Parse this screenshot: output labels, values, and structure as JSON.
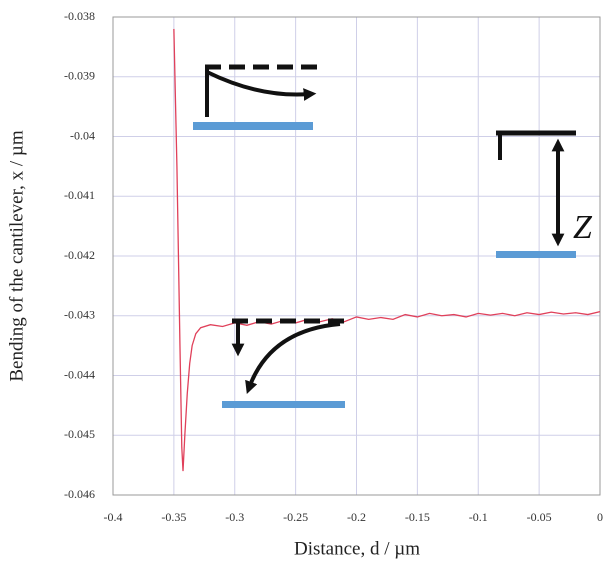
{
  "chart_data": {
    "type": "line",
    "x_label": "Distance, d / µm",
    "y_label": "Bending of the cantilever, x / µm",
    "annotation": "Z",
    "color": "#e0405a",
    "grid": true,
    "xlim": [
      -0.4,
      0
    ],
    "ylim": [
      -0.046,
      -0.038
    ],
    "xticks": [
      -0.4,
      -0.35,
      -0.3,
      -0.25,
      -0.2,
      -0.15,
      -0.1,
      -0.05,
      0
    ],
    "yticks": [
      -0.038,
      -0.039,
      -0.04,
      -0.041,
      -0.042,
      -0.043,
      -0.044,
      -0.045,
      -0.046
    ],
    "x": [
      -0.35,
      -0.3475,
      -0.345,
      -0.3435,
      -0.3425,
      -0.341,
      -0.339,
      -0.337,
      -0.335,
      -0.332,
      -0.328,
      -0.32,
      -0.31,
      -0.3,
      -0.29,
      -0.28,
      -0.27,
      -0.26,
      -0.25,
      -0.24,
      -0.23,
      -0.22,
      -0.21,
      -0.2,
      -0.19,
      -0.18,
      -0.17,
      -0.16,
      -0.15,
      -0.14,
      -0.13,
      -0.12,
      -0.11,
      -0.1,
      -0.09,
      -0.08,
      -0.07,
      -0.06,
      -0.05,
      -0.04,
      -0.03,
      -0.02,
      -0.01,
      0
    ],
    "values": [
      -0.0382,
      -0.0405,
      -0.0435,
      -0.0452,
      -0.0456,
      -0.045,
      -0.0443,
      -0.0438,
      -0.0435,
      -0.0433,
      -0.0432,
      -0.04315,
      -0.04318,
      -0.04312,
      -0.04316,
      -0.0431,
      -0.04314,
      -0.04308,
      -0.04312,
      -0.04306,
      -0.0431,
      -0.04305,
      -0.0431,
      -0.04302,
      -0.04306,
      -0.04303,
      -0.04306,
      -0.04298,
      -0.04302,
      -0.04296,
      -0.043,
      -0.04298,
      -0.04302,
      -0.04296,
      -0.04299,
      -0.04296,
      -0.043,
      -0.04295,
      -0.04298,
      -0.04294,
      -0.04297,
      -0.04295,
      -0.04298,
      -0.04293
    ]
  }
}
